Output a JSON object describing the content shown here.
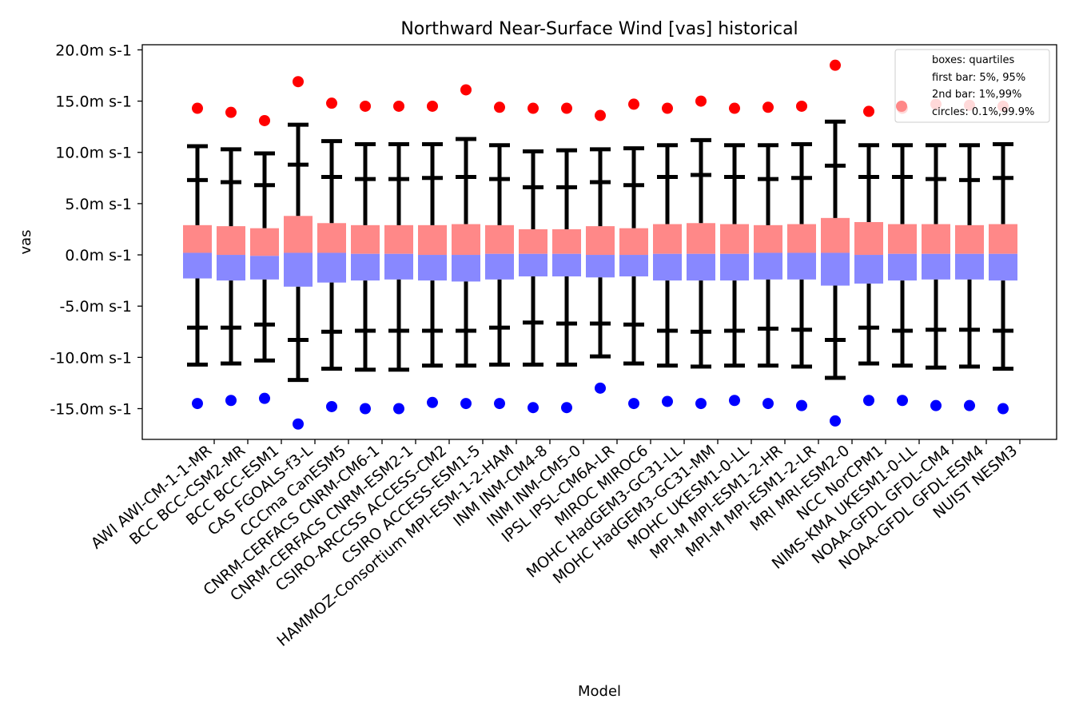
{
  "chart_data": {
    "type": "box",
    "title": "Northward Near-Surface Wind [vas] historical",
    "xlabel": "Model",
    "ylabel": "vas",
    "ylim": [
      -18.0,
      20.5
    ],
    "yticks": [
      {
        "value": 20,
        "label": "20.0m s-1"
      },
      {
        "value": 15,
        "label": "15.0m s-1"
      },
      {
        "value": 10,
        "label": "10.0m s-1"
      },
      {
        "value": 5,
        "label": "5.0m s-1"
      },
      {
        "value": 0,
        "label": "0.0m s-1"
      },
      {
        "value": -5,
        "label": "-5.0m s-1"
      },
      {
        "value": -10,
        "label": "-10.0m s-1"
      },
      {
        "value": -15,
        "label": "-15.0m s-1"
      }
    ],
    "legend": {
      "position": "top-right",
      "entries": [
        "boxes: quartiles",
        "first bar: 5%, 95%",
        "2nd bar: 1%,99%",
        "circles: 0.1%,99.9%"
      ]
    },
    "colors": {
      "upper_box": "#ff8888",
      "lower_box": "#8888ff",
      "whisker": "#000000",
      "upper_circle": "#ff0000",
      "lower_circle": "#0000ff",
      "legend_circle": "#ff8888"
    },
    "models": [
      {
        "name": "AWI AWI-CM-1-1-MR",
        "q1": -2.3,
        "median": 0.2,
        "q3": 2.9,
        "p5": -7.1,
        "p95": 7.3,
        "p1": -10.7,
        "p99": 10.6,
        "p01": -14.5,
        "p999": 14.3
      },
      {
        "name": "BCC BCC-CSM2-MR",
        "q1": -2.5,
        "median": 0.0,
        "q3": 2.8,
        "p5": -7.1,
        "p95": 7.1,
        "p1": -10.6,
        "p99": 10.3,
        "p01": -14.2,
        "p999": 13.9
      },
      {
        "name": "BCC BCC-ESM1",
        "q1": -2.4,
        "median": -0.1,
        "q3": 2.6,
        "p5": -6.8,
        "p95": 6.8,
        "p1": -10.3,
        "p99": 9.9,
        "p01": -14.0,
        "p999": 13.1
      },
      {
        "name": "CAS FGOALS-f3-L",
        "q1": -3.1,
        "median": 0.2,
        "q3": 3.8,
        "p5": -8.3,
        "p95": 8.8,
        "p1": -12.2,
        "p99": 12.7,
        "p01": -16.5,
        "p999": 16.9
      },
      {
        "name": "CCCma CanESM5",
        "q1": -2.7,
        "median": 0.2,
        "q3": 3.1,
        "p5": -7.5,
        "p95": 7.6,
        "p1": -11.1,
        "p99": 11.1,
        "p01": -14.8,
        "p999": 14.8
      },
      {
        "name": "CNRM-CERFACS CNRM-CM6-1",
        "q1": -2.5,
        "median": 0.1,
        "q3": 2.9,
        "p5": -7.4,
        "p95": 7.4,
        "p1": -11.2,
        "p99": 10.8,
        "p01": -15.0,
        "p999": 14.5
      },
      {
        "name": "CNRM-CERFACS CNRM-ESM2-1",
        "q1": -2.4,
        "median": 0.1,
        "q3": 2.9,
        "p5": -7.4,
        "p95": 7.4,
        "p1": -11.2,
        "p99": 10.8,
        "p01": -15.0,
        "p999": 14.5
      },
      {
        "name": "CSIRO-ARCCSS ACCESS-CM2",
        "q1": -2.5,
        "median": 0.0,
        "q3": 2.9,
        "p5": -7.4,
        "p95": 7.5,
        "p1": -10.8,
        "p99": 10.8,
        "p01": -14.4,
        "p999": 14.5
      },
      {
        "name": "CSIRO ACCESS-ESM1-5",
        "q1": -2.6,
        "median": 0.0,
        "q3": 3.0,
        "p5": -7.4,
        "p95": 7.6,
        "p1": -10.8,
        "p99": 11.3,
        "p01": -14.5,
        "p999": 16.1
      },
      {
        "name": "HAMMOZ-Consortium MPI-ESM-1-2-HAM",
        "q1": -2.4,
        "median": 0.1,
        "q3": 2.9,
        "p5": -7.1,
        "p95": 7.4,
        "p1": -10.7,
        "p99": 10.7,
        "p01": -14.5,
        "p999": 14.4
      },
      {
        "name": "INM INM-CM4-8",
        "q1": -2.1,
        "median": 0.1,
        "q3": 2.5,
        "p5": -6.6,
        "p95": 6.6,
        "p1": -10.7,
        "p99": 10.1,
        "p01": -14.9,
        "p999": 14.3
      },
      {
        "name": "INM INM-CM5-0",
        "q1": -2.1,
        "median": 0.1,
        "q3": 2.5,
        "p5": -6.7,
        "p95": 6.6,
        "p1": -10.7,
        "p99": 10.2,
        "p01": -14.9,
        "p999": 14.3
      },
      {
        "name": "IPSL IPSL-CM6A-LR",
        "q1": -2.2,
        "median": 0.0,
        "q3": 2.8,
        "p5": -6.7,
        "p95": 7.1,
        "p1": -9.9,
        "p99": 10.3,
        "p01": -13.0,
        "p999": 13.6
      },
      {
        "name": "MIROC MIROC6",
        "q1": -2.1,
        "median": 0.0,
        "q3": 2.6,
        "p5": -6.8,
        "p95": 6.8,
        "p1": -10.6,
        "p99": 10.4,
        "p01": -14.5,
        "p999": 14.7
      },
      {
        "name": "MOHC HadGEM3-GC31-LL",
        "q1": -2.5,
        "median": 0.1,
        "q3": 3.0,
        "p5": -7.4,
        "p95": 7.6,
        "p1": -10.8,
        "p99": 10.7,
        "p01": -14.3,
        "p999": 14.3
      },
      {
        "name": "MOHC HadGEM3-GC31-MM",
        "q1": -2.5,
        "median": 0.1,
        "q3": 3.1,
        "p5": -7.5,
        "p95": 7.8,
        "p1": -10.9,
        "p99": 11.2,
        "p01": -14.5,
        "p999": 15.0
      },
      {
        "name": "MOHC UKESM1-0-LL",
        "q1": -2.5,
        "median": 0.1,
        "q3": 3.0,
        "p5": -7.4,
        "p95": 7.6,
        "p1": -10.8,
        "p99": 10.7,
        "p01": -14.2,
        "p999": 14.3
      },
      {
        "name": "MPI-M MPI-ESM1-2-HR",
        "q1": -2.4,
        "median": 0.2,
        "q3": 2.9,
        "p5": -7.2,
        "p95": 7.4,
        "p1": -10.8,
        "p99": 10.7,
        "p01": -14.5,
        "p999": 14.4
      },
      {
        "name": "MPI-M MPI-ESM1-2-LR",
        "q1": -2.4,
        "median": 0.2,
        "q3": 3.0,
        "p5": -7.3,
        "p95": 7.5,
        "p1": -10.9,
        "p99": 10.8,
        "p01": -14.7,
        "p999": 14.5
      },
      {
        "name": "MRI MRI-ESM2-0",
        "q1": -3.0,
        "median": 0.2,
        "q3": 3.6,
        "p5": -8.3,
        "p95": 8.7,
        "p1": -12.0,
        "p99": 13.0,
        "p01": -16.2,
        "p999": 18.5
      },
      {
        "name": "NCC NorCPM1",
        "q1": -2.8,
        "median": 0.0,
        "q3": 3.2,
        "p5": -7.1,
        "p95": 7.6,
        "p1": -10.6,
        "p99": 10.7,
        "p01": -14.2,
        "p999": 14.0
      },
      {
        "name": "NIMS-KMA UKESM1-0-LL",
        "q1": -2.5,
        "median": 0.1,
        "q3": 3.0,
        "p5": -7.4,
        "p95": 7.6,
        "p1": -10.8,
        "p99": 10.7,
        "p01": -14.2,
        "p999": 14.3
      },
      {
        "name": "NOAA-GFDL GFDL-CM4",
        "q1": -2.4,
        "median": 0.1,
        "q3": 3.0,
        "p5": -7.3,
        "p95": 7.4,
        "p1": -11.0,
        "p99": 10.7,
        "p01": -14.7,
        "p999": 14.7
      },
      {
        "name": "NOAA-GFDL GFDL-ESM4",
        "q1": -2.4,
        "median": 0.1,
        "q3": 2.9,
        "p5": -7.3,
        "p95": 7.3,
        "p1": -10.9,
        "p99": 10.7,
        "p01": -14.7,
        "p999": 14.6
      },
      {
        "name": "NUIST NESM3",
        "q1": -2.5,
        "median": 0.1,
        "q3": 3.0,
        "p5": -7.4,
        "p95": 7.5,
        "p1": -11.1,
        "p99": 10.8,
        "p01": -15.0,
        "p999": 14.5
      }
    ]
  }
}
